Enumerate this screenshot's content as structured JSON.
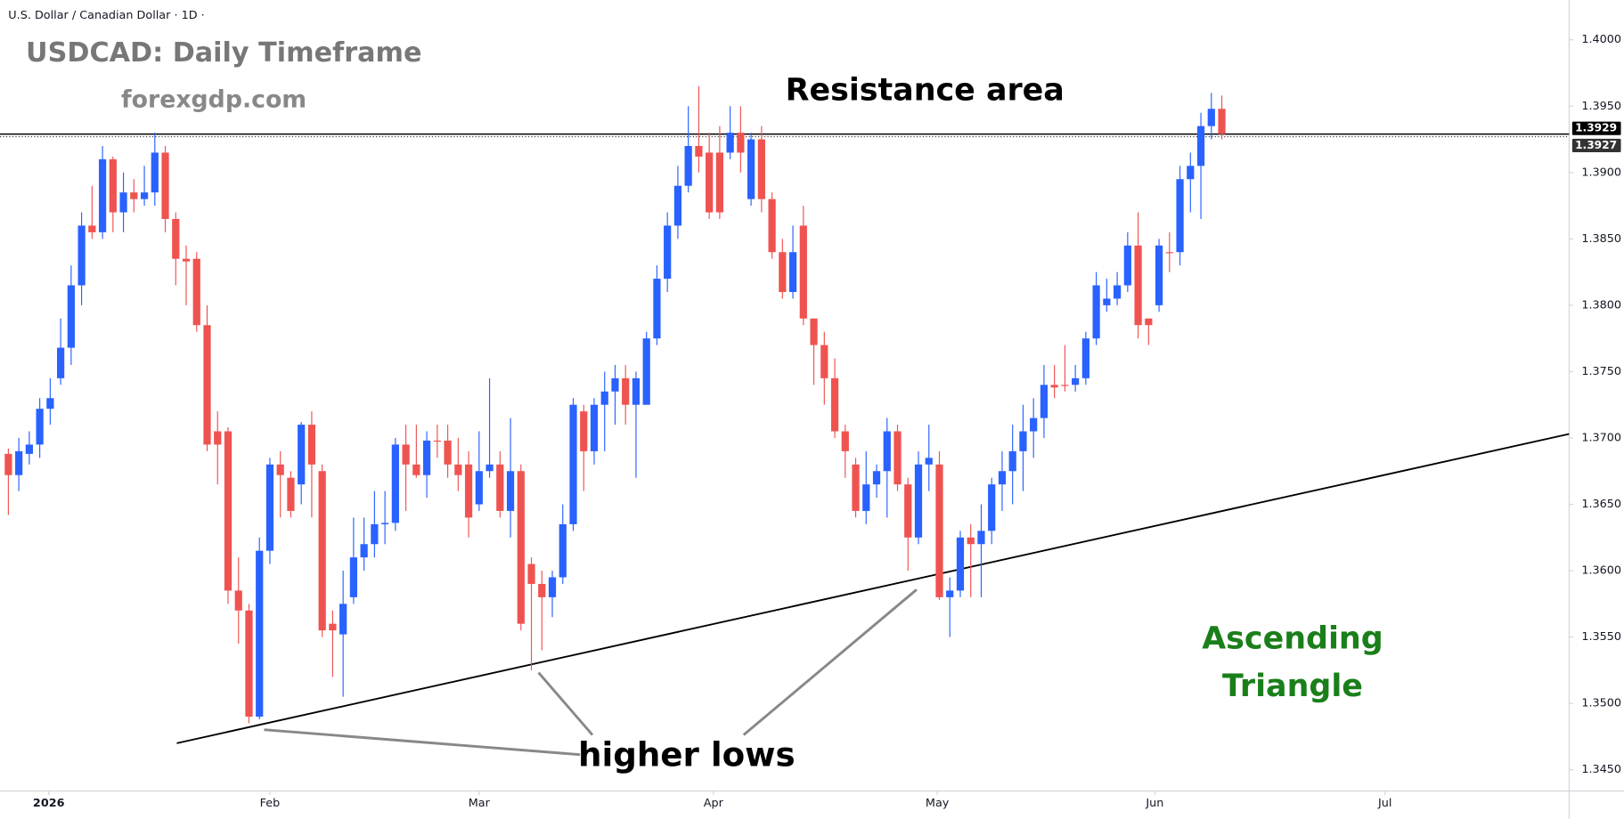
{
  "chart_data": {
    "type": "candlestick",
    "header": "U.S. Dollar / Canadian Dollar · 1D ·",
    "title": "USDCAD: Daily Timeframe",
    "subtitle": "forexgdp.com",
    "annotations": {
      "resistance": "Resistance area",
      "pattern": [
        "Ascending",
        "Triangle"
      ],
      "higher_lows": "higher lows"
    },
    "up_color": "#2962ff",
    "down_color": "#ef5350",
    "open": [
      1.3688,
      1.3672,
      1.3688,
      1.3695,
      1.3722,
      1.3745,
      1.3768,
      1.3815,
      1.386,
      1.3855,
      1.391,
      1.387,
      1.3885,
      1.388,
      1.3885,
      1.3915,
      1.3865,
      1.3835,
      1.3835,
      1.3785,
      1.3705,
      1.3705,
      1.3585,
      1.357,
      1.349,
      1.3615,
      1.368,
      1.367,
      1.3665,
      1.371,
      1.3675,
      1.356,
      1.3552,
      1.358,
      1.361,
      1.362,
      1.3635,
      1.3636,
      1.3695,
      1.368,
      1.3672,
      1.3698,
      1.3698,
      1.368,
      1.368,
      1.365,
      1.3675,
      1.368,
      1.3645,
      1.3675,
      1.3605,
      1.359,
      1.358,
      1.3595,
      1.3635,
      1.372,
      1.369,
      1.3725,
      1.3735,
      1.3745,
      1.3725,
      1.3725,
      1.3775,
      1.382,
      1.386,
      1.389,
      1.392,
      1.3915,
      1.3915,
      1.3915,
      1.393,
      1.388,
      1.3925,
      1.388,
      1.384,
      1.381,
      1.386,
      1.379,
      1.377,
      1.3745,
      1.3705,
      1.368,
      1.3645,
      1.3665,
      1.3675,
      1.3705,
      1.3665,
      1.3625,
      1.368,
      1.368,
      1.358,
      1.3585,
      1.3625,
      1.362,
      1.363,
      1.3665,
      1.3675,
      1.369,
      1.3705,
      1.3715,
      1.374,
      1.374,
      1.374,
      1.3745,
      1.3775,
      1.38,
      1.3805,
      1.3815,
      1.3845,
      1.379,
      1.38,
      1.384,
      1.384,
      1.3895,
      1.3905,
      1.3935,
      1.3948
    ],
    "high": [
      1.3692,
      1.37,
      1.3705,
      1.373,
      1.3745,
      1.379,
      1.383,
      1.387,
      1.389,
      1.392,
      1.3912,
      1.39,
      1.3895,
      1.3905,
      1.393,
      1.392,
      1.387,
      1.3845,
      1.384,
      1.38,
      1.372,
      1.3708,
      1.361,
      1.3575,
      1.3625,
      1.3685,
      1.369,
      1.3675,
      1.3712,
      1.372,
      1.368,
      1.357,
      1.36,
      1.364,
      1.364,
      1.366,
      1.366,
      1.37,
      1.371,
      1.371,
      1.3705,
      1.371,
      1.371,
      1.37,
      1.369,
      1.3705,
      1.3745,
      1.369,
      1.3715,
      1.368,
      1.361,
      1.36,
      1.36,
      1.365,
      1.373,
      1.3725,
      1.373,
      1.375,
      1.3755,
      1.3755,
      1.375,
      1.378,
      1.383,
      1.387,
      1.3905,
      1.395,
      1.3965,
      1.393,
      1.3935,
      1.395,
      1.395,
      1.393,
      1.3935,
      1.3885,
      1.385,
      1.386,
      1.3875,
      1.379,
      1.378,
      1.376,
      1.371,
      1.3685,
      1.369,
      1.368,
      1.3715,
      1.371,
      1.367,
      1.369,
      1.371,
      1.369,
      1.3595,
      1.363,
      1.3635,
      1.365,
      1.367,
      1.369,
      1.371,
      1.3725,
      1.373,
      1.3755,
      1.3755,
      1.377,
      1.3755,
      1.378,
      1.3825,
      1.382,
      1.3825,
      1.3855,
      1.387,
      1.379,
      1.385,
      1.3855,
      1.3905,
      1.3915,
      1.3945,
      1.396,
      1.3958
    ],
    "low": [
      1.3642,
      1.366,
      1.368,
      1.3685,
      1.371,
      1.374,
      1.3755,
      1.38,
      1.385,
      1.385,
      1.3855,
      1.3855,
      1.387,
      1.3875,
      1.3875,
      1.3855,
      1.3815,
      1.38,
      1.378,
      1.369,
      1.3665,
      1.3575,
      1.3545,
      1.3485,
      1.3488,
      1.3605,
      1.364,
      1.364,
      1.365,
      1.364,
      1.355,
      1.352,
      1.3505,
      1.3575,
      1.36,
      1.361,
      1.362,
      1.363,
      1.3645,
      1.367,
      1.3655,
      1.3685,
      1.367,
      1.366,
      1.3625,
      1.3645,
      1.367,
      1.364,
      1.3625,
      1.3555,
      1.3525,
      1.354,
      1.3565,
      1.359,
      1.363,
      1.366,
      1.368,
      1.369,
      1.371,
      1.371,
      1.367,
      1.3725,
      1.377,
      1.381,
      1.385,
      1.3885,
      1.39,
      1.3865,
      1.3865,
      1.391,
      1.39,
      1.3875,
      1.387,
      1.3835,
      1.3805,
      1.3805,
      1.3785,
      1.374,
      1.3725,
      1.37,
      1.367,
      1.364,
      1.3635,
      1.3655,
      1.364,
      1.366,
      1.36,
      1.362,
      1.366,
      1.3578,
      1.355,
      1.358,
      1.358,
      1.358,
      1.362,
      1.3645,
      1.365,
      1.366,
      1.3685,
      1.37,
      1.373,
      1.3735,
      1.3735,
      1.374,
      1.377,
      1.3795,
      1.38,
      1.381,
      1.3775,
      1.377,
      1.3795,
      1.3825,
      1.383,
      1.387,
      1.3865,
      1.3925,
      1.3925
    ],
    "close": [
      1.3672,
      1.369,
      1.3695,
      1.3722,
      1.373,
      1.3768,
      1.3815,
      1.386,
      1.3855,
      1.391,
      1.387,
      1.3885,
      1.388,
      1.3885,
      1.3915,
      1.3865,
      1.3835,
      1.3833,
      1.3785,
      1.3695,
      1.3695,
      1.3585,
      1.357,
      1.349,
      1.3615,
      1.368,
      1.3672,
      1.3645,
      1.371,
      1.368,
      1.3555,
      1.3555,
      1.3575,
      1.361,
      1.362,
      1.3635,
      1.3636,
      1.3695,
      1.368,
      1.3672,
      1.3698,
      1.3698,
      1.368,
      1.3672,
      1.364,
      1.3675,
      1.368,
      1.3645,
      1.3675,
      1.356,
      1.359,
      1.358,
      1.3595,
      1.3635,
      1.3725,
      1.369,
      1.3725,
      1.3735,
      1.3745,
      1.3725,
      1.3745,
      1.3775,
      1.382,
      1.386,
      1.389,
      1.392,
      1.3912,
      1.387,
      1.387,
      1.393,
      1.3915,
      1.3925,
      1.388,
      1.384,
      1.381,
      1.384,
      1.379,
      1.377,
      1.3745,
      1.3705,
      1.369,
      1.3645,
      1.3665,
      1.3675,
      1.3705,
      1.3665,
      1.3625,
      1.368,
      1.3685,
      1.358,
      1.3585,
      1.3625,
      1.362,
      1.363,
      1.3665,
      1.3675,
      1.369,
      1.3705,
      1.3715,
      1.374,
      1.3738,
      1.374,
      1.3745,
      1.3775,
      1.3815,
      1.3805,
      1.3815,
      1.3845,
      1.3785,
      1.3785,
      1.3845,
      1.384,
      1.3895,
      1.3905,
      1.3935,
      1.3948,
      1.3929
    ],
    "xlim": [
      -0.8,
      149.2
    ],
    "xticks": [
      {
        "value": 3.86,
        "label": "2026"
      },
      {
        "value": 25,
        "label": "Feb"
      },
      {
        "value": 45,
        "label": "Mar"
      },
      {
        "value": 67.4,
        "label": "Apr"
      },
      {
        "value": 88.8,
        "label": "May"
      },
      {
        "value": 109.6,
        "label": "Jun"
      },
      {
        "value": 131.6,
        "label": "Jul"
      }
    ],
    "ylim": [
      1.3434,
      1.403
    ],
    "yticks": [
      {
        "value": 1.345,
        "label": "1.3450"
      },
      {
        "value": 1.35,
        "label": "1.3500"
      },
      {
        "value": 1.355,
        "label": "1.3550"
      },
      {
        "value": 1.36,
        "label": "1.3600"
      },
      {
        "value": 1.365,
        "label": "1.3650"
      },
      {
        "value": 1.37,
        "label": "1.3700"
      },
      {
        "value": 1.375,
        "label": "1.3750"
      },
      {
        "value": 1.38,
        "label": "1.3800"
      },
      {
        "value": 1.385,
        "label": "1.3850"
      },
      {
        "value": 1.39,
        "label": "1.3900"
      },
      {
        "value": 1.395,
        "label": "1.3950"
      },
      {
        "value": 1.4,
        "label": "1.4000"
      }
    ],
    "price_lines": [
      {
        "value": 1.3929,
        "label": "1.3929",
        "color": "#000000"
      },
      {
        "value": 1.3927,
        "label": "1.3927",
        "color": "#333333"
      }
    ],
    "trendline": {
      "x": [
        16.1,
        149.2
      ],
      "y": [
        1.347,
        1.3703
      ]
    },
    "grid": false
  }
}
